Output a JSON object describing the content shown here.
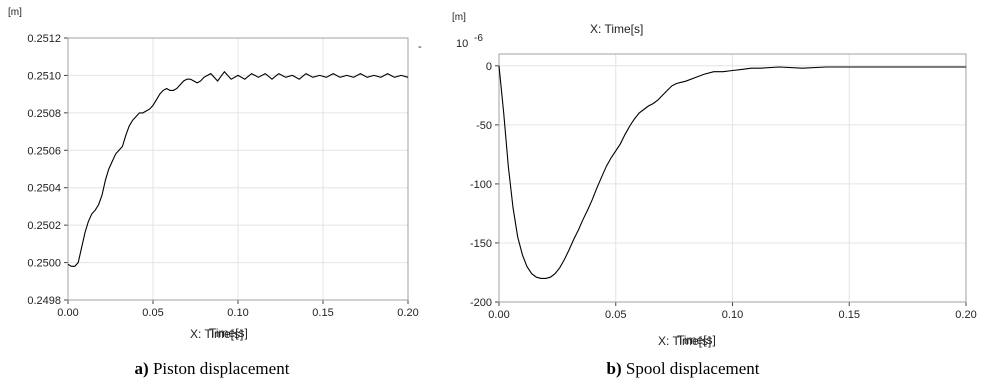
{
  "chart_data": [
    {
      "type": "line",
      "unit_label": "[m]",
      "xlabel": "X: Time[s]",
      "xlabel_overlay": "Time[s]",
      "xlim": [
        0,
        0.2
      ],
      "ylim": [
        0.2498,
        0.2512
      ],
      "x_ticks": [
        "0.00",
        "0.05",
        "0.10",
        "0.15",
        "0.20"
      ],
      "y_ticks": [
        "0.2498",
        "0.2500",
        "0.2502",
        "0.2504",
        "0.2506",
        "0.2508",
        "0.2510",
        "0.2512"
      ],
      "grid": true,
      "caption_letter": "a)",
      "caption_text": " Piston displacement",
      "series": [
        {
          "x": [
            0,
            0.002,
            0.004,
            0.006,
            0.008,
            0.01,
            0.012,
            0.014,
            0.016,
            0.018,
            0.02,
            0.022,
            0.024,
            0.026,
            0.028,
            0.03,
            0.032,
            0.034,
            0.036,
            0.038,
            0.04,
            0.042,
            0.044,
            0.046,
            0.048,
            0.05,
            0.052,
            0.054,
            0.056,
            0.058,
            0.06,
            0.062,
            0.064,
            0.066,
            0.068,
            0.07,
            0.072,
            0.074,
            0.076,
            0.078,
            0.08,
            0.084,
            0.088,
            0.092,
            0.096,
            0.1,
            0.104,
            0.108,
            0.112,
            0.116,
            0.12,
            0.124,
            0.128,
            0.132,
            0.136,
            0.14,
            0.144,
            0.148,
            0.152,
            0.156,
            0.16,
            0.164,
            0.168,
            0.172,
            0.176,
            0.18,
            0.184,
            0.188,
            0.192,
            0.196,
            0.2
          ],
          "y": [
            0.24999,
            0.24998,
            0.24998,
            0.25,
            0.25008,
            0.25016,
            0.25022,
            0.25026,
            0.25028,
            0.25031,
            0.25036,
            0.25044,
            0.2505,
            0.25054,
            0.25058,
            0.2506,
            0.25062,
            0.25068,
            0.25073,
            0.25076,
            0.25078,
            0.2508,
            0.2508,
            0.25081,
            0.25082,
            0.25084,
            0.25087,
            0.2509,
            0.25092,
            0.25093,
            0.25092,
            0.25092,
            0.25093,
            0.25095,
            0.25097,
            0.25098,
            0.25098,
            0.25097,
            0.25096,
            0.25097,
            0.25099,
            0.25101,
            0.25097,
            0.25102,
            0.25098,
            0.251,
            0.25098,
            0.25101,
            0.25099,
            0.25101,
            0.25098,
            0.25101,
            0.25099,
            0.251,
            0.25098,
            0.25101,
            0.25099,
            0.251,
            0.25099,
            0.25101,
            0.25099,
            0.251,
            0.25099,
            0.25101,
            0.25099,
            0.251,
            0.25099,
            0.25101,
            0.25099,
            0.251,
            0.25099
          ]
        }
      ]
    },
    {
      "type": "line",
      "unit_label": "[m]",
      "scale_label": "10",
      "scale_exponent": "-6",
      "top_xlabel": "X: Time[s]",
      "xlabel": "X: Time[s]",
      "xlabel_overlay": "Time[s]",
      "xlim": [
        0,
        0.2
      ],
      "ylim": [
        -200,
        10
      ],
      "x_ticks": [
        "0.00",
        "0.05",
        "0.10",
        "0.15",
        "0.20"
      ],
      "y_ticks": [
        "0",
        "-50",
        "-100",
        "-150",
        "-200"
      ],
      "grid": true,
      "caption_letter": "b)",
      "caption_text": " Spool displacement",
      "series": [
        {
          "x": [
            0,
            0.002,
            0.004,
            0.006,
            0.008,
            0.01,
            0.012,
            0.014,
            0.016,
            0.018,
            0.02,
            0.022,
            0.024,
            0.026,
            0.028,
            0.03,
            0.032,
            0.034,
            0.036,
            0.038,
            0.04,
            0.042,
            0.044,
            0.046,
            0.048,
            0.05,
            0.052,
            0.054,
            0.056,
            0.058,
            0.06,
            0.062,
            0.064,
            0.066,
            0.068,
            0.07,
            0.072,
            0.074,
            0.076,
            0.078,
            0.08,
            0.084,
            0.088,
            0.092,
            0.096,
            0.1,
            0.104,
            0.108,
            0.112,
            0.12,
            0.13,
            0.14,
            0.15,
            0.16,
            0.17,
            0.18,
            0.19,
            0.2
          ],
          "y": [
            0,
            -40,
            -85,
            -120,
            -145,
            -160,
            -170,
            -176,
            -179,
            -180,
            -180,
            -179,
            -176,
            -171,
            -164,
            -156,
            -147,
            -139,
            -130,
            -122,
            -113,
            -103,
            -94,
            -85,
            -78,
            -72,
            -66,
            -58,
            -51,
            -45,
            -40,
            -37,
            -34,
            -32,
            -29,
            -25,
            -21,
            -17,
            -15,
            -14,
            -13,
            -10,
            -7,
            -5,
            -5,
            -4,
            -3,
            -2,
            -2,
            -1,
            -2,
            -1,
            -1,
            -1,
            -1,
            -1,
            -1,
            -1
          ]
        }
      ]
    }
  ]
}
